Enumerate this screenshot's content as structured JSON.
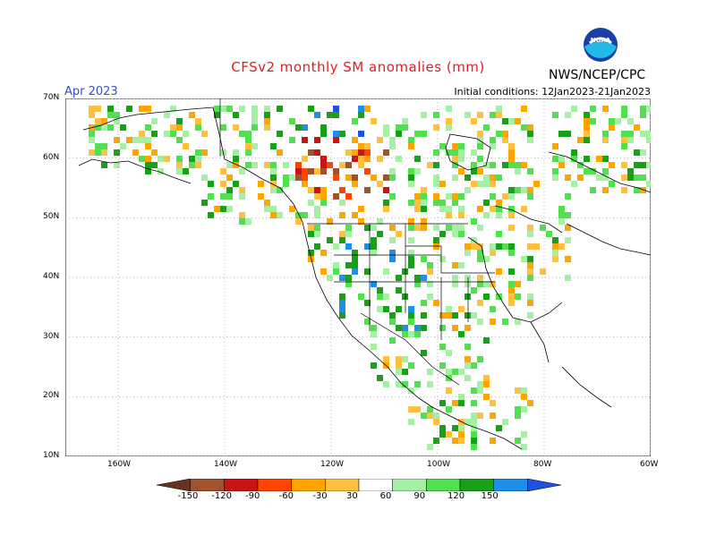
{
  "title": "CFSv2 monthly SM anomalies (mm)",
  "period": "Apr 2023",
  "initial_conditions": "Initial conditions: 12Jan2023-21Jan2023",
  "agency": "NWS/NCEP/CPC",
  "logo_text": "NOAA",
  "lat_ticks": [
    "70N",
    "60N",
    "50N",
    "40N",
    "30N",
    "20N",
    "10N"
  ],
  "lon_ticks": [
    "160W",
    "140W",
    "120W",
    "100W",
    "80W",
    "60W"
  ],
  "legend": {
    "labels": [
      "-150",
      "-120",
      "-90",
      "-60",
      "-30",
      "30",
      "60",
      "90",
      "120",
      "150"
    ],
    "colors": [
      "#663322",
      "#a0522d",
      "#c81414",
      "#ff4500",
      "#ffa500",
      "#ffc040",
      "#ffffff",
      "#a6f0a6",
      "#50e050",
      "#18a018",
      "#1e8fe8",
      "#2050e0"
    ]
  },
  "chart_data": {
    "type": "heatmap",
    "title": "CFSv2 monthly SM anomalies (mm)",
    "units": "mm",
    "lat_range": [
      "10N",
      "70N"
    ],
    "lon_range": [
      "170W",
      "60W"
    ],
    "color_scale_bins": [
      -150,
      -120,
      -90,
      -60,
      -30,
      30,
      60,
      90,
      120,
      150
    ]
  }
}
